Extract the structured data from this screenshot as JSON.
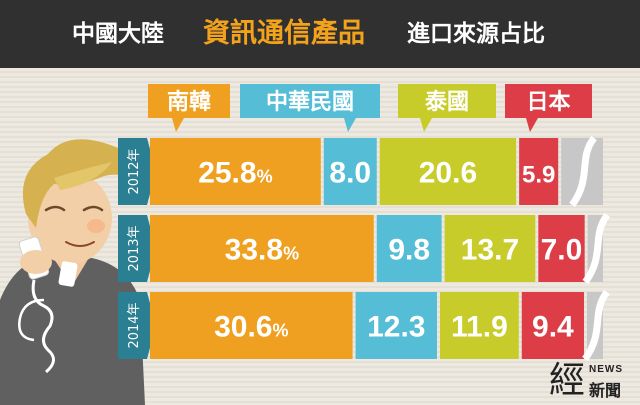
{
  "header": {
    "prefix": "中國大陸",
    "highlight": "資訊通信產品",
    "suffix": "進口來源占比"
  },
  "colors": {
    "南韓": "#f0a020",
    "中華民國": "#56bdd6",
    "泰國": "#c8cc2a",
    "日本": "#dd3d47",
    "other": "#c7c7c7",
    "year_tab": "#2a7f93"
  },
  "chart_data": {
    "type": "bar",
    "stacked": true,
    "orientation": "horizontal",
    "unit": "%",
    "categories": [
      "2012年",
      "2013年",
      "2014年"
    ],
    "series": [
      {
        "name": "南韓",
        "values": [
          25.8,
          33.8,
          30.6
        ],
        "labels": [
          "25.8%",
          "33.8%",
          "30.6%"
        ]
      },
      {
        "name": "中華民國",
        "values": [
          8.0,
          9.8,
          12.3
        ],
        "labels": [
          "8.0",
          "9.8",
          "12.3"
        ]
      },
      {
        "name": "泰國",
        "values": [
          20.6,
          13.7,
          11.9
        ],
        "labels": [
          "20.6",
          "13.7",
          "11.9"
        ]
      },
      {
        "name": "日本",
        "values": [
          5.9,
          7.0,
          9.4
        ],
        "labels": [
          "5.9",
          "7.0",
          "9.4"
        ]
      }
    ],
    "remainder_shown": "gray segment with break mark",
    "legend_position": "top"
  },
  "logo": {
    "big": "經",
    "en": "NEWS",
    "zh": "新聞"
  }
}
